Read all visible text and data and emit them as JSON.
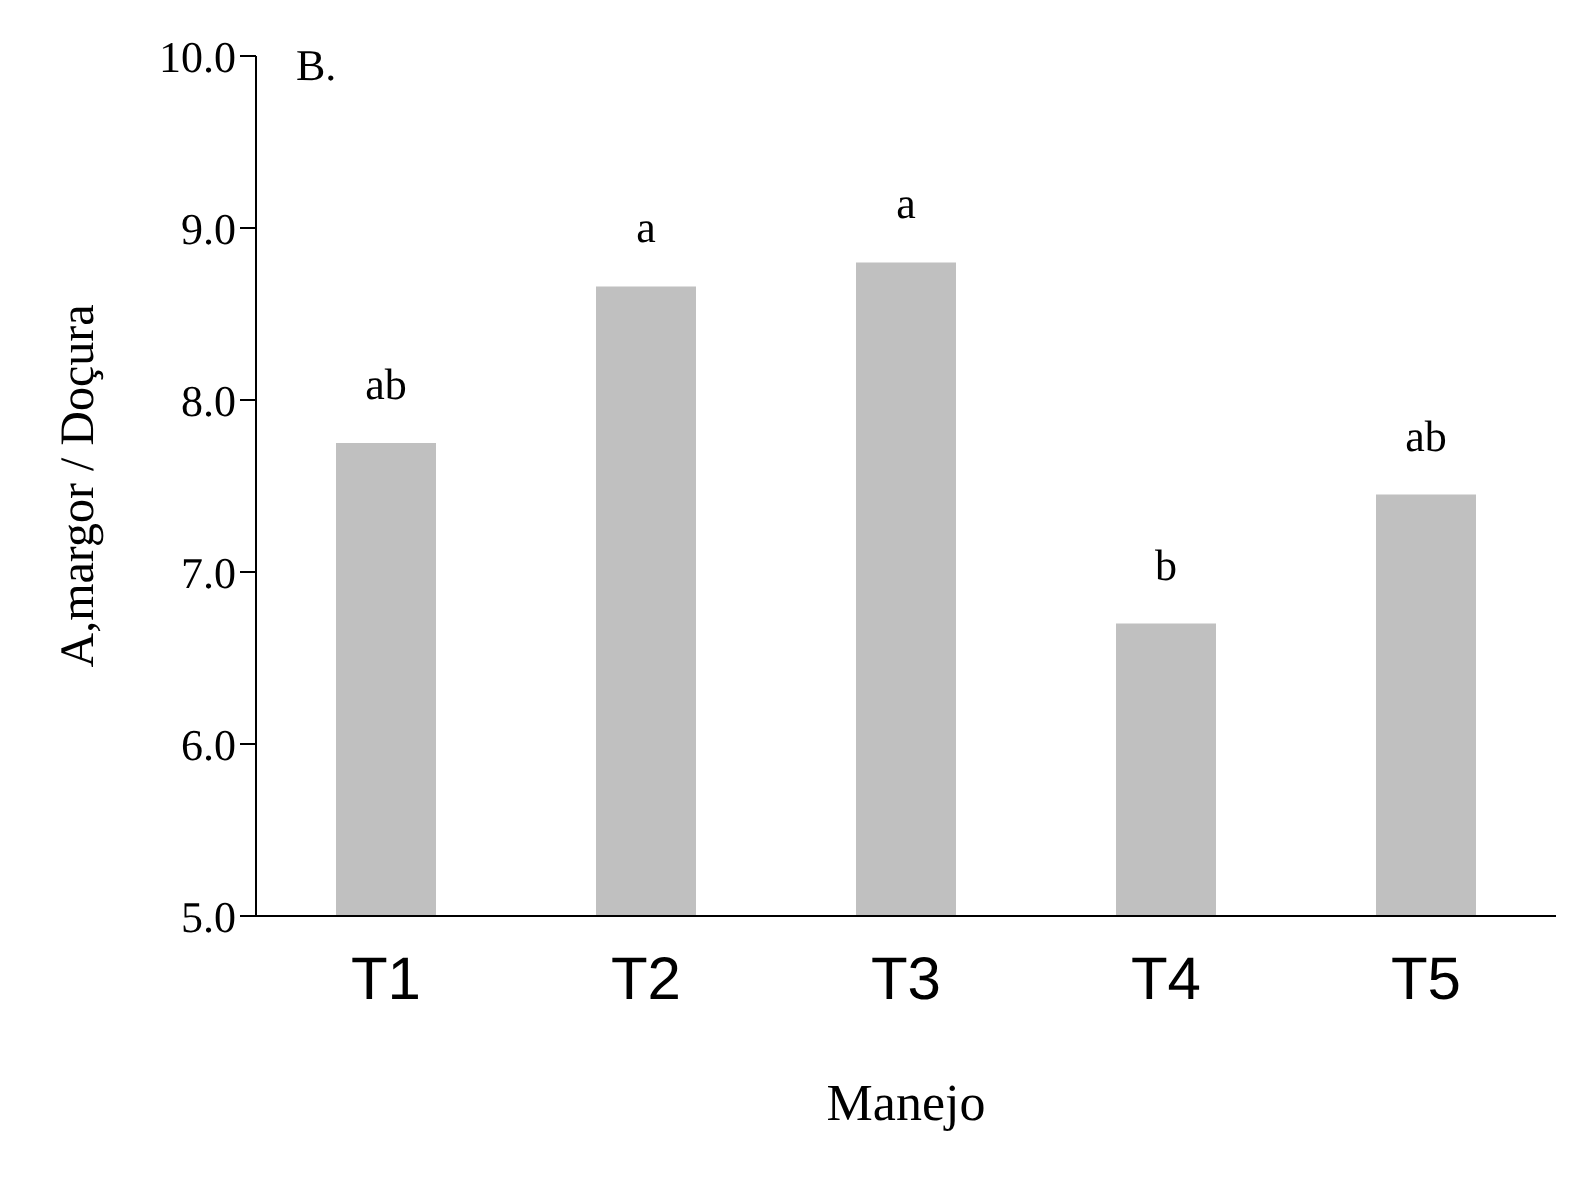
{
  "chart_data": {
    "type": "bar",
    "xlabel": "Manejo",
    "ylabel": "A,margor / Doçura",
    "categories": [
      "T1",
      "T2",
      "T3",
      "T4",
      "T5"
    ],
    "values": [
      7.75,
      8.66,
      8.8,
      6.7,
      7.45
    ],
    "color": "#c0c0c0",
    "ylim": [
      5,
      10
    ],
    "yticks": [
      {
        "value": 5,
        "label": "5.0"
      },
      {
        "value": 6,
        "label": "6.0"
      },
      {
        "value": 7,
        "label": "7.0"
      },
      {
        "value": 8,
        "label": "8.0"
      },
      {
        "value": 9,
        "label": "9.0"
      },
      {
        "value": 10,
        "label": "10.0"
      }
    ],
    "grid": false,
    "legend": false,
    "annotations": [
      "B.",
      {
        "text": "ab",
        "x": "T1",
        "y": 7.75
      },
      {
        "text": "a",
        "x": "T2",
        "y": 8.66
      },
      {
        "text": "a",
        "x": "T3",
        "y": 8.8
      },
      {
        "text": "b",
        "x": "T4",
        "y": 6.7
      },
      {
        "text": "ab",
        "x": "T5",
        "y": 7.45
      }
    ]
  }
}
